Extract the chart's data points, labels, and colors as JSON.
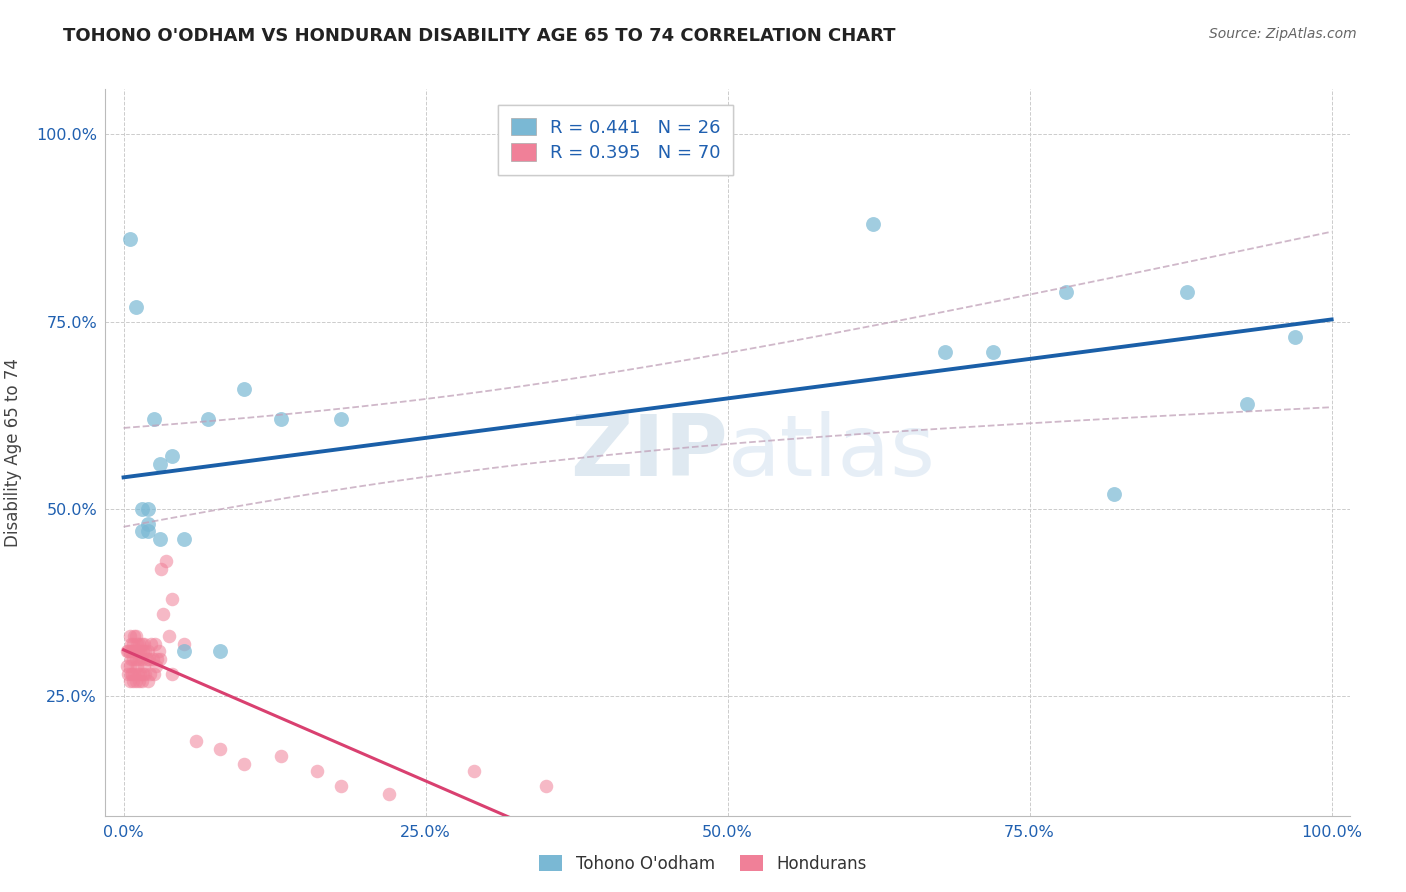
{
  "title": "TOHONO O'ODHAM VS HONDURAN DISABILITY AGE 65 TO 74 CORRELATION CHART",
  "source": "Source: ZipAtlas.com",
  "ylabel": "Disability Age 65 to 74",
  "xlim": [
    -0.015,
    1.015
  ],
  "ylim": [
    0.09,
    1.06
  ],
  "xticks": [
    0.0,
    0.25,
    0.5,
    0.75,
    1.0
  ],
  "yticks": [
    0.25,
    0.5,
    0.75,
    1.0
  ],
  "legend1_label": "R = 0.441   N = 26",
  "legend2_label": "R = 0.395   N = 70",
  "tohono_color": "#7ab8d4",
  "honduran_color": "#f08098",
  "tohono_line_color": "#1a5fa8",
  "honduran_line_color": "#d94070",
  "tohono_ci_color": "#c0a0b8",
  "watermark_top": "ZIP",
  "watermark_bot": "atlas",
  "tohono_x": [
    0.005,
    0.01,
    0.015,
    0.015,
    0.02,
    0.02,
    0.02,
    0.025,
    0.03,
    0.03,
    0.04,
    0.05,
    0.05,
    0.07,
    0.08,
    0.1,
    0.13,
    0.18,
    0.62,
    0.68,
    0.72,
    0.78,
    0.82,
    0.88,
    0.93,
    0.97
  ],
  "tohono_y": [
    0.86,
    0.77,
    0.47,
    0.5,
    0.47,
    0.48,
    0.5,
    0.62,
    0.46,
    0.56,
    0.57,
    0.31,
    0.46,
    0.62,
    0.31,
    0.66,
    0.62,
    0.62,
    0.88,
    0.71,
    0.71,
    0.79,
    0.52,
    0.79,
    0.64,
    0.73
  ],
  "honduran_x": [
    0.003,
    0.003,
    0.004,
    0.004,
    0.005,
    0.005,
    0.005,
    0.005,
    0.006,
    0.006,
    0.006,
    0.007,
    0.007,
    0.008,
    0.008,
    0.008,
    0.009,
    0.009,
    0.009,
    0.01,
    0.01,
    0.01,
    0.01,
    0.011,
    0.011,
    0.012,
    0.012,
    0.013,
    0.013,
    0.013,
    0.014,
    0.014,
    0.015,
    0.015,
    0.015,
    0.016,
    0.016,
    0.017,
    0.017,
    0.018,
    0.018,
    0.019,
    0.02,
    0.02,
    0.021,
    0.022,
    0.023,
    0.024,
    0.025,
    0.026,
    0.027,
    0.028,
    0.029,
    0.03,
    0.031,
    0.033,
    0.035,
    0.038,
    0.04,
    0.04,
    0.05,
    0.06,
    0.08,
    0.1,
    0.13,
    0.16,
    0.18,
    0.22,
    0.29,
    0.35
  ],
  "honduran_y": [
    0.29,
    0.31,
    0.28,
    0.31,
    0.27,
    0.29,
    0.31,
    0.33,
    0.28,
    0.3,
    0.32,
    0.28,
    0.31,
    0.27,
    0.3,
    0.32,
    0.28,
    0.31,
    0.33,
    0.27,
    0.3,
    0.31,
    0.33,
    0.29,
    0.32,
    0.28,
    0.31,
    0.27,
    0.3,
    0.32,
    0.28,
    0.31,
    0.27,
    0.3,
    0.32,
    0.28,
    0.31,
    0.29,
    0.32,
    0.28,
    0.31,
    0.3,
    0.27,
    0.31,
    0.3,
    0.28,
    0.32,
    0.3,
    0.28,
    0.32,
    0.29,
    0.3,
    0.31,
    0.3,
    0.42,
    0.36,
    0.43,
    0.33,
    0.28,
    0.38,
    0.32,
    0.19,
    0.18,
    0.16,
    0.17,
    0.15,
    0.13,
    0.12,
    0.15,
    0.13
  ]
}
